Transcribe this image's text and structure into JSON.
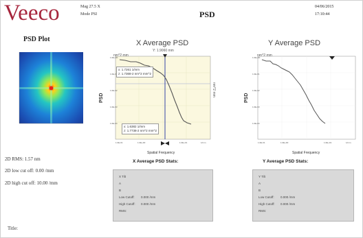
{
  "header": {
    "logo": "Veeco",
    "mag": "Mag 27.5 X",
    "mode": "Mode PSI",
    "title": "PSD",
    "date": "04/06/2015",
    "time": "17:10:44"
  },
  "left": {
    "plot_title": "PSD Plot",
    "stats": [
      "2D RMS: 1.57 nm",
      "2D low cut off: 0.00 /mm",
      "2D high cut off: 10.00 /mm"
    ],
    "title_label": "Title:"
  },
  "x_psd": {
    "title": "X Average PSD",
    "subtitle": "Y: 1.9060 mm",
    "ylabel": "PSD",
    "yunit": "nm^2 mm",
    "xlabel": "Spatial Frequency",
    "y2label": "nm^2 mm",
    "cursor_top": [
      "x: 1.7261 1/mm",
      "z: 1.7368-2 nm^2 mm^2"
    ],
    "cursor_bottom": [
      "x: 1.6382 1/mm",
      "z: 1.7738-2 nm^2 mm^2"
    ],
    "stats_title": "X Average PSD Stats:",
    "stats": [
      {
        "label": "X Tilt",
        "value": ""
      },
      {
        "label": "A",
        "value": ""
      },
      {
        "label": "B",
        "value": ""
      },
      {
        "label": "Low Cutoff:",
        "value": "0.000 /mm"
      },
      {
        "label": "High Cutoff:",
        "value": "0.000 /mm"
      },
      {
        "label": "RMS:",
        "value": ""
      }
    ]
  },
  "y_psd": {
    "title": "Y Average PSD",
    "ylabel": "PSD",
    "yunit": "nm^2 mm",
    "xlabel": "Spatial Frequency",
    "stats_title": "Y Average PSD Stats:",
    "stats": [
      {
        "label": "Y Tilt",
        "value": ""
      },
      {
        "label": "A",
        "value": ""
      },
      {
        "label": "B",
        "value": ""
      },
      {
        "label": "Low Cutoff:",
        "value": "0.000 /mm"
      },
      {
        "label": "High Cutoff:",
        "value": "0.000 /mm"
      },
      {
        "label": "RMS:",
        "value": ""
      }
    ]
  },
  "colors": {
    "logo": "#a6253c",
    "plot_bg": "#fbf8df",
    "curve": "#555555",
    "cursor": "#1d2f9c"
  }
}
